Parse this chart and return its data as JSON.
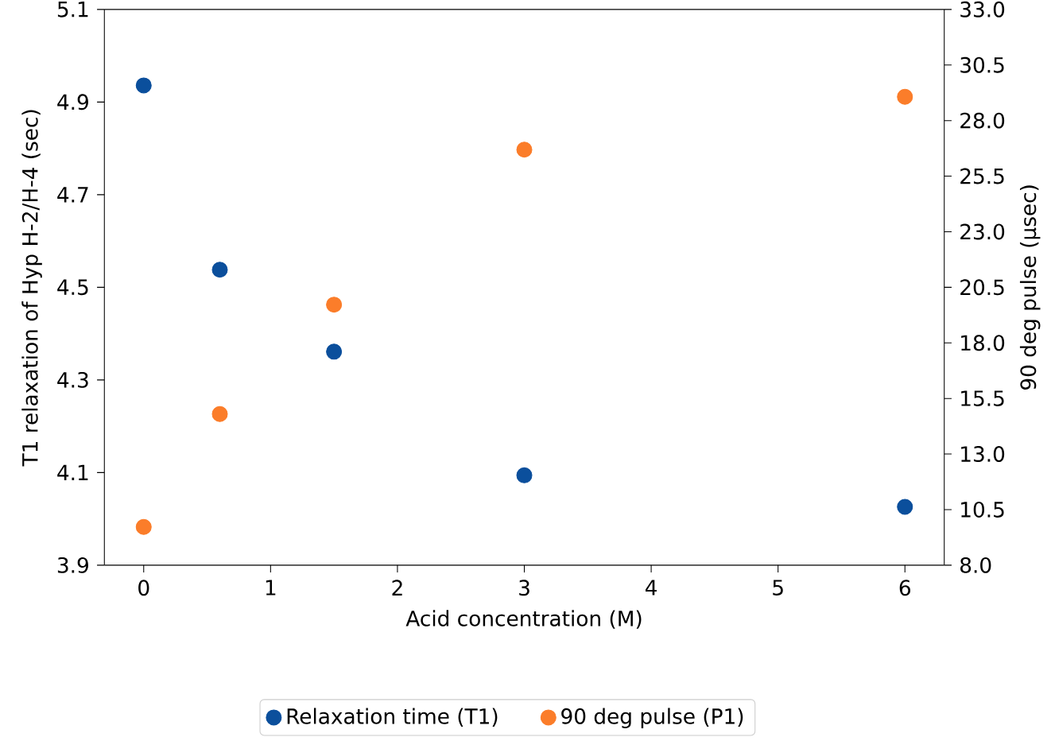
{
  "chart_data": {
    "type": "scatter",
    "xlabel": "Acid concentration (M)",
    "ylabel": "T1 relaxation of Hyp H-2/H-4 (sec)",
    "y2label": "90 deg pulse (µsec)",
    "x": [
      0,
      0.6,
      1.5,
      3,
      6
    ],
    "series": [
      {
        "name": "Relaxation time (T1)",
        "color": "#0b4f9c",
        "values": [
          4.936,
          4.538,
          4.361,
          4.094,
          4.026
        ]
      },
      {
        "name": "90 deg pulse (P1)",
        "color": "#fb7d2a",
        "values": [
          9.72,
          14.8,
          19.72,
          26.69,
          29.07
        ],
        "axis": "y2"
      }
    ],
    "xlim": [
      -0.31,
      6.31
    ],
    "xticks": [
      0,
      1,
      2,
      3,
      4,
      5,
      6
    ],
    "ylim": [
      3.9,
      5.1
    ],
    "yticks": [
      3.9,
      4.1,
      4.3,
      4.5,
      4.7,
      4.9,
      5.1
    ],
    "y2lim": [
      8,
      33
    ],
    "y2ticks": [
      {
        "value": 8,
        "label": "8.0"
      },
      {
        "value": 10.5,
        "label": "10.5"
      },
      {
        "value": 13,
        "label": "13.0"
      },
      {
        "value": 15.5,
        "label": "15.5"
      },
      {
        "value": 18,
        "label": "18.0"
      },
      {
        "value": 20.5,
        "label": "20.5"
      },
      {
        "value": 23,
        "label": "23.0"
      },
      {
        "value": 25.5,
        "label": "25.5"
      },
      {
        "value": 28,
        "label": "28.0"
      },
      {
        "value": 30.5,
        "label": "30.5"
      },
      {
        "value": 33,
        "label": "33.0"
      }
    ],
    "marker": "circle",
    "legend": "bottom"
  }
}
